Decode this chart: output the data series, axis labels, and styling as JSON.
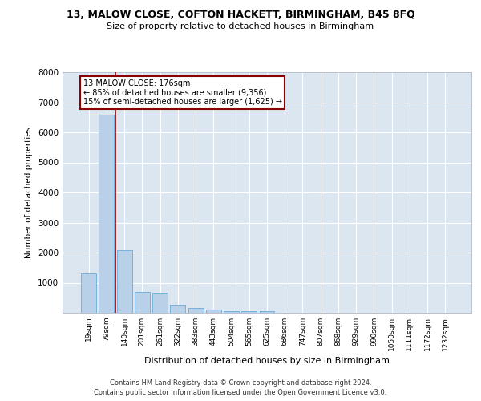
{
  "title_line1": "13, MALOW CLOSE, COFTON HACKETT, BIRMINGHAM, B45 8FQ",
  "title_line2": "Size of property relative to detached houses in Birmingham",
  "xlabel": "Distribution of detached houses by size in Birmingham",
  "ylabel": "Number of detached properties",
  "categories": [
    "19sqm",
    "79sqm",
    "140sqm",
    "201sqm",
    "261sqm",
    "322sqm",
    "383sqm",
    "443sqm",
    "504sqm",
    "565sqm",
    "625sqm",
    "686sqm",
    "747sqm",
    "807sqm",
    "868sqm",
    "929sqm",
    "990sqm",
    "1050sqm",
    "1111sqm",
    "1172sqm",
    "1232sqm"
  ],
  "values": [
    1300,
    6600,
    2080,
    700,
    680,
    280,
    150,
    100,
    60,
    60,
    60,
    0,
    0,
    0,
    0,
    0,
    0,
    0,
    0,
    0,
    0
  ],
  "bar_color": "#b8d0e8",
  "bar_edge_color": "#6aabda",
  "vline_color": "#8b0000",
  "annotation_text": "13 MALOW CLOSE: 176sqm\n← 85% of detached houses are smaller (9,356)\n15% of semi-detached houses are larger (1,625) →",
  "annotation_box_color": "#ffffff",
  "annotation_box_edge_color": "#8b0000",
  "ylim": [
    0,
    8000
  ],
  "yticks": [
    0,
    1000,
    2000,
    3000,
    4000,
    5000,
    6000,
    7000,
    8000
  ],
  "background_color": "#dce6f1",
  "footer_line1": "Contains HM Land Registry data © Crown copyright and database right 2024.",
  "footer_line2": "Contains public sector information licensed under the Open Government Licence v3.0."
}
